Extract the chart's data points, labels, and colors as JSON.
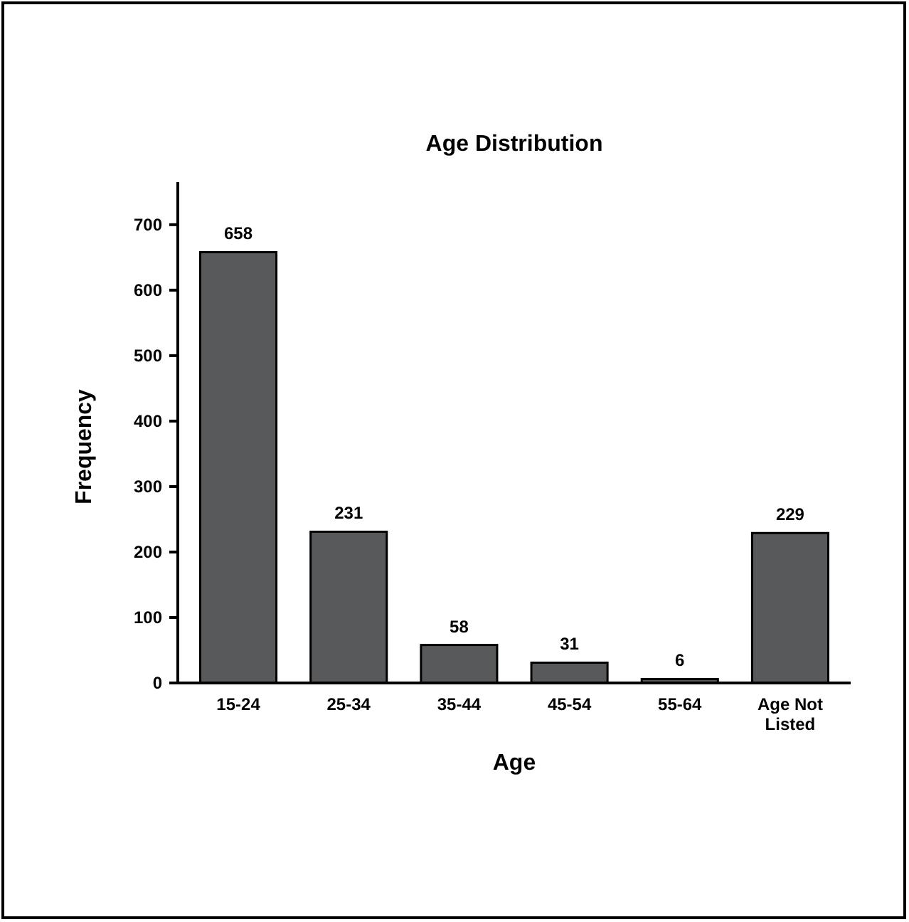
{
  "chart_data": {
    "type": "bar",
    "title": "Age Distribution",
    "xlabel": "Age",
    "ylabel": "Frequency",
    "categories": [
      "15-24",
      "25-34",
      "35-44",
      "45-54",
      "55-64",
      "Age Not Listed"
    ],
    "values": [
      658,
      231,
      58,
      31,
      6,
      229
    ],
    "color": "#58595b",
    "data_labels": true,
    "ylim": [
      0,
      765
    ],
    "yticks": [
      0,
      100,
      200,
      300,
      400,
      500,
      600,
      700
    ],
    "grid": false
  }
}
